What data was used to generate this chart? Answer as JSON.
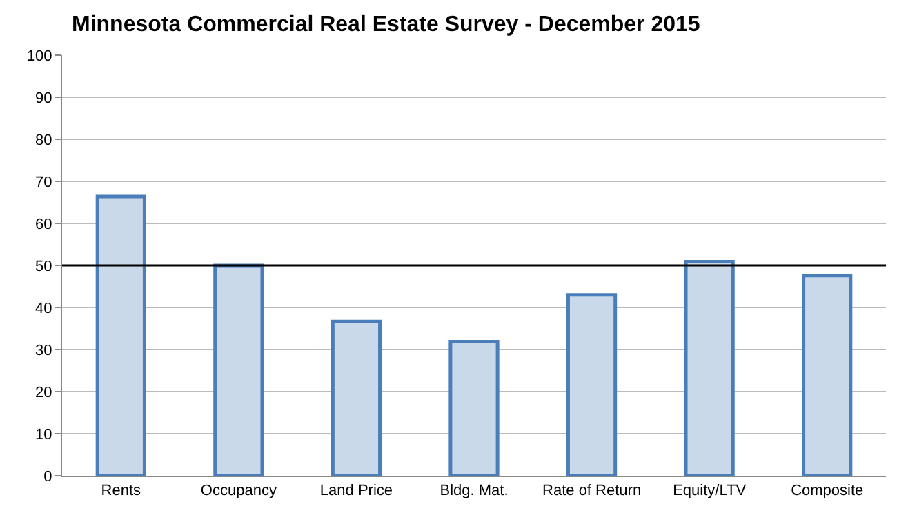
{
  "chart_data": {
    "type": "bar",
    "title": "Minnesota Commercial Real Estate Survey - December 2015",
    "categories": [
      "Rents",
      "Occupancy",
      "Land Price",
      "Bldg. Mat.",
      "Rate of Return",
      "Equity/LTV",
      "Composite"
    ],
    "values": [
      66.4,
      50,
      36.7,
      31.9,
      43,
      50.9,
      47.6
    ],
    "color": "#c9d9ea",
    "ylim": [
      0,
      100
    ],
    "yticks": [
      0,
      10,
      20,
      30,
      40,
      50,
      60,
      70,
      80,
      90,
      100
    ],
    "grid": "y",
    "ref_lines": [
      {
        "axis": "y",
        "value": 50,
        "color": "#000000"
      }
    ]
  }
}
